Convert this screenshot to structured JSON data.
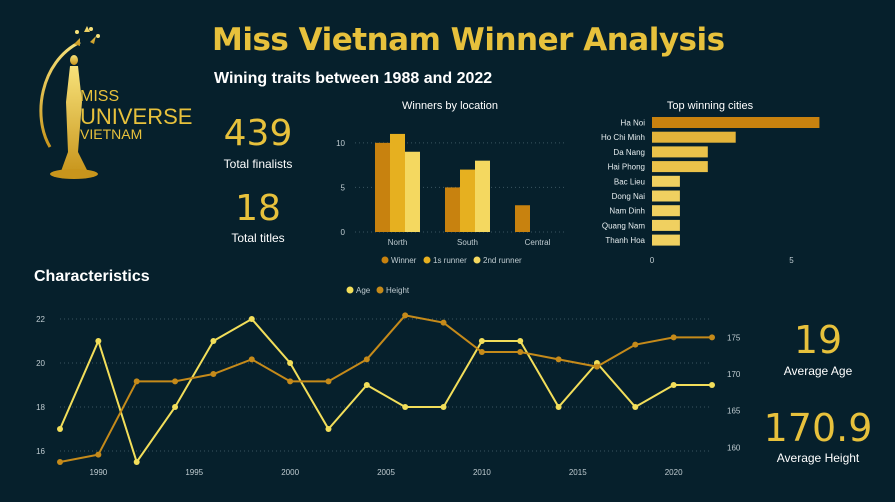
{
  "header": {
    "title": "Miss Vietnam Winner Analysis",
    "subtitle": "Wining traits between 1988 and 2022"
  },
  "logo": {
    "line1": "MISS",
    "line2": "UNIVERSE",
    "line3": "VIETNAM"
  },
  "kpis": {
    "finalists_value": "439",
    "finalists_label": "Total finalists",
    "titles_value": "18",
    "titles_label": "Total titles",
    "age_value": "19",
    "age_label": "Average Age",
    "height_value": "170.9",
    "height_label": "Average Height"
  },
  "section": {
    "characteristics": "Characteristics"
  },
  "colors": {
    "background": "#06202c",
    "gold": "#e7c13c",
    "winner": "#c8820f",
    "first": "#e6b020",
    "second": "#f4d860",
    "age": "#f2de5a",
    "height": "#c58a1a"
  },
  "chart_data": [
    {
      "type": "bar",
      "title": "Winners by location",
      "categories": [
        "North",
        "South",
        "Central"
      ],
      "series": [
        {
          "name": "Winner",
          "values": [
            10,
            5,
            3
          ]
        },
        {
          "name": "1s runner",
          "values": [
            11,
            7,
            0
          ]
        },
        {
          "name": "2nd runner",
          "values": [
            9,
            8,
            0
          ]
        }
      ],
      "ylim": [
        0,
        12
      ],
      "yticks": [
        "0",
        "5",
        "10"
      ],
      "legend": "bottom"
    },
    {
      "type": "bar",
      "orientation": "horizontal",
      "title": "Top winning cities",
      "categories": [
        "Ha Noi",
        "Ho Chi Minh",
        "Da Nang",
        "Hai Phong",
        "Bac Lieu",
        "Dong Nai",
        "Nam Dinh",
        "Quang Nam",
        "Thanh Hoa"
      ],
      "values": [
        6,
        3,
        2,
        2,
        1,
        1,
        1,
        1,
        1
      ],
      "xlim": [
        0,
        6.2
      ],
      "xticks": [
        "0",
        "5"
      ]
    },
    {
      "type": "line",
      "legend": "top",
      "x": [
        1988,
        1990,
        1992,
        1994,
        1996,
        1998,
        2000,
        2002,
        2004,
        2006,
        2008,
        2010,
        2012,
        2014,
        2016,
        2018,
        2020,
        2022
      ],
      "xticks": [
        "1990",
        "1995",
        "2000",
        "2005",
        "2010",
        "2015",
        "2020"
      ],
      "series": [
        {
          "name": "Age",
          "axis": "left",
          "values": [
            17,
            21,
            15.5,
            18,
            21,
            22,
            20,
            17,
            19,
            18,
            18,
            21,
            21,
            18,
            20,
            18,
            19,
            19
          ]
        },
        {
          "name": "Height",
          "axis": "right",
          "values": [
            158,
            159,
            169,
            169,
            170,
            172,
            169,
            169,
            172,
            178,
            177,
            173,
            173,
            172,
            171,
            174,
            175,
            175
          ]
        }
      ],
      "ylim_left": [
        15.5,
        22.5
      ],
      "yticks_left": [
        "16",
        "18",
        "20",
        "22"
      ],
      "ylim_right": [
        158,
        179
      ],
      "yticks_right": [
        "160",
        "165",
        "170",
        "175"
      ]
    }
  ]
}
